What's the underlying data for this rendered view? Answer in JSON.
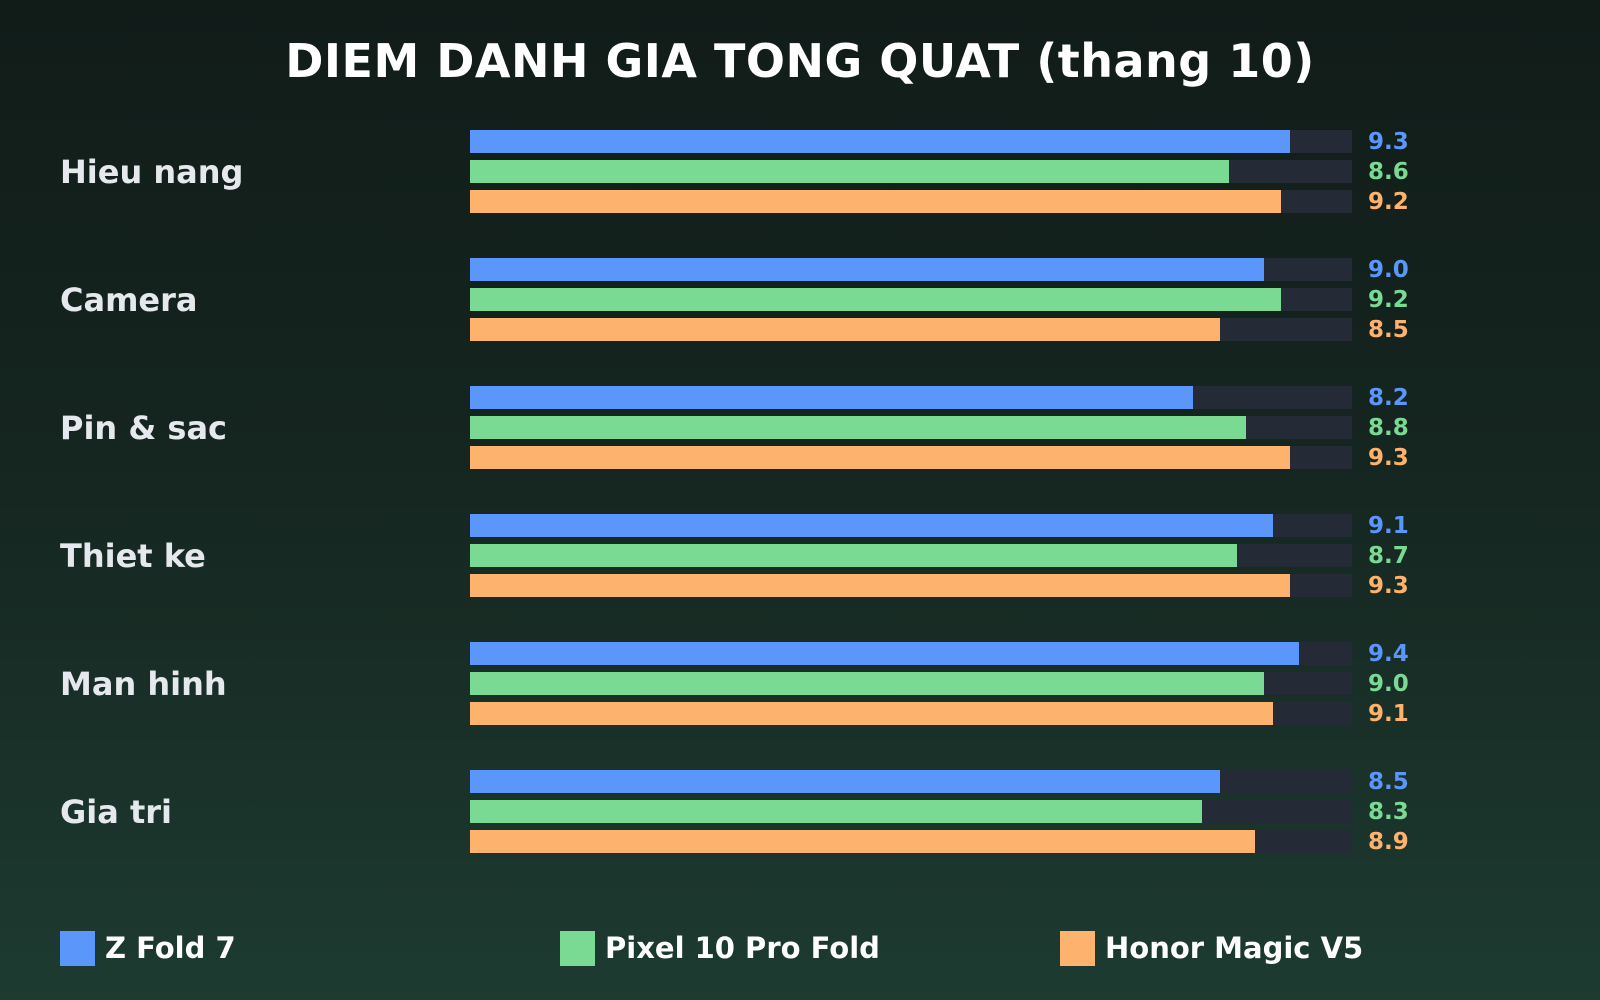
{
  "chart_data": {
    "type": "bar",
    "orientation": "horizontal",
    "title": "DIEM DANH GIA TONG QUAT (thang 10)",
    "categories": [
      "Hieu nang",
      "Camera",
      "Pin & sac",
      "Thiet ke",
      "Man hinh",
      "Gia tri"
    ],
    "series": [
      {
        "name": "Z Fold 7",
        "color": "#5b97fa",
        "values": [
          9.3,
          9.0,
          8.2,
          9.1,
          9.4,
          8.5
        ]
      },
      {
        "name": "Pixel 10 Pro Fold",
        "color": "#7ad993",
        "values": [
          8.6,
          9.2,
          8.8,
          8.7,
          9.0,
          8.3
        ]
      },
      {
        "name": "Honor Magic V5",
        "color": "#fdb26d",
        "values": [
          9.2,
          8.5,
          9.3,
          9.3,
          9.1,
          8.9
        ]
      }
    ],
    "xlim": [
      0,
      10
    ],
    "track_color": "#252b36",
    "grid": false,
    "legend": "bottom"
  }
}
